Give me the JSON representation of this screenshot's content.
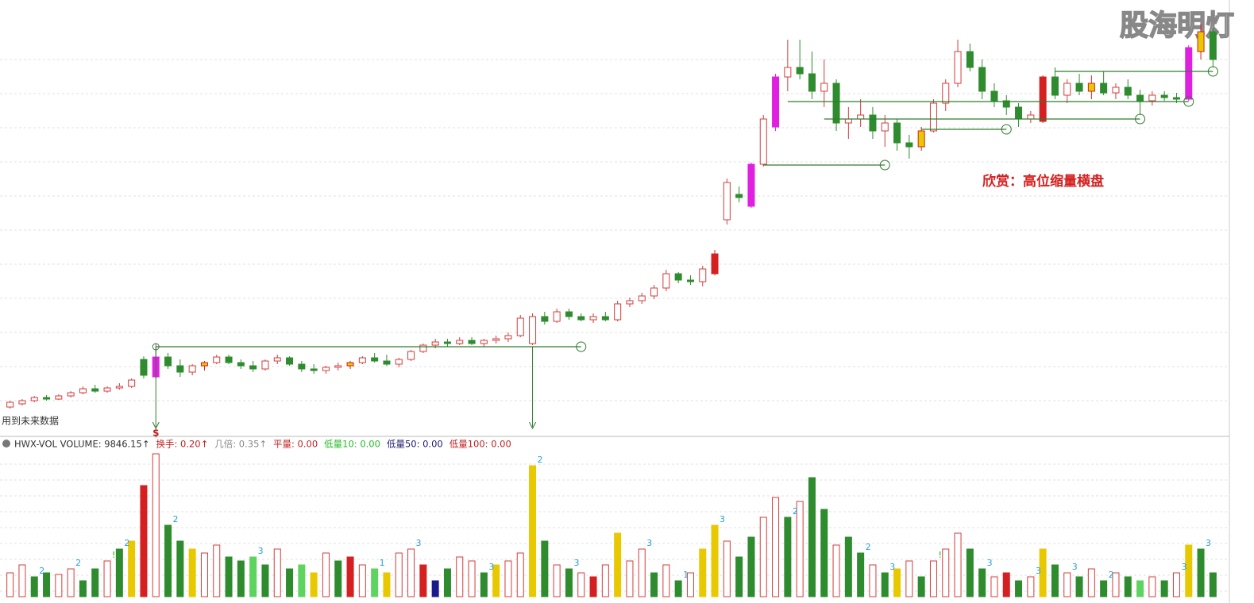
{
  "chart_data": {
    "type": "candlestick",
    "watermark": "股海明灯",
    "annotation": "欣赏：高位缩量横盘",
    "note": "用到未来数据",
    "signal": "$",
    "ylim": [
      0,
      545
    ],
    "colors": {
      "u": "#d43c3c",
      "d": "#2e8b2e",
      "m": "#e020e0",
      "y": "#e8c800",
      "r": "#d42020",
      "b": "#1a1a8c",
      "l": "#5fd35f"
    },
    "ohlc": [
      [
        32,
        40,
        30,
        38
      ],
      [
        36,
        42,
        34,
        40
      ],
      [
        40,
        46,
        38,
        44
      ],
      [
        44,
        47,
        40,
        42
      ],
      [
        42,
        48,
        41,
        46
      ],
      [
        46,
        52,
        44,
        50
      ],
      [
        50,
        58,
        48,
        55
      ],
      [
        55,
        60,
        50,
        52
      ],
      [
        52,
        58,
        50,
        56
      ],
      [
        56,
        62,
        54,
        58
      ],
      [
        58,
        68,
        56,
        66
      ],
      [
        92,
        96,
        68,
        72
      ],
      [
        70,
        112,
        68,
        95
      ],
      [
        95,
        100,
        80,
        84
      ],
      [
        84,
        92,
        70,
        76
      ],
      [
        76,
        86,
        72,
        84
      ],
      [
        84,
        90,
        78,
        88
      ],
      [
        88,
        98,
        86,
        95
      ],
      [
        95,
        98,
        86,
        88
      ],
      [
        88,
        92,
        80,
        84
      ],
      [
        84,
        90,
        76,
        80
      ],
      [
        80,
        92,
        78,
        90
      ],
      [
        90,
        98,
        86,
        94
      ],
      [
        94,
        96,
        84,
        86
      ],
      [
        86,
        90,
        76,
        80
      ],
      [
        80,
        86,
        74,
        78
      ],
      [
        78,
        84,
        74,
        82
      ],
      [
        82,
        88,
        78,
        84
      ],
      [
        84,
        90,
        80,
        88
      ],
      [
        88,
        96,
        86,
        94
      ],
      [
        94,
        100,
        88,
        90
      ],
      [
        90,
        98,
        84,
        86
      ],
      [
        86,
        94,
        82,
        92
      ],
      [
        92,
        104,
        90,
        102
      ],
      [
        102,
        112,
        100,
        110
      ],
      [
        110,
        118,
        106,
        114
      ],
      [
        114,
        118,
        108,
        112
      ],
      [
        112,
        120,
        110,
        116
      ],
      [
        116,
        120,
        110,
        112
      ],
      [
        112,
        118,
        108,
        116
      ],
      [
        116,
        122,
        112,
        118
      ],
      [
        118,
        126,
        114,
        122
      ],
      [
        122,
        148,
        120,
        144
      ],
      [
        112,
        150,
        110,
        146
      ],
      [
        146,
        152,
        136,
        140
      ],
      [
        140,
        156,
        138,
        152
      ],
      [
        152,
        156,
        142,
        146
      ],
      [
        146,
        150,
        140,
        142
      ],
      [
        142,
        150,
        138,
        146
      ],
      [
        146,
        152,
        140,
        142
      ],
      [
        142,
        166,
        140,
        162
      ],
      [
        162,
        170,
        158,
        166
      ],
      [
        166,
        176,
        162,
        172
      ],
      [
        172,
        186,
        168,
        182
      ],
      [
        182,
        205,
        178,
        200
      ],
      [
        200,
        202,
        188,
        192
      ],
      [
        192,
        198,
        186,
        190
      ],
      [
        190,
        210,
        184,
        206
      ],
      [
        200,
        230,
        198,
        225
      ],
      [
        268,
        320,
        262,
        315
      ],
      [
        300,
        310,
        290,
        296
      ],
      [
        285,
        340,
        283,
        338
      ],
      [
        338,
        400,
        335,
        395
      ],
      [
        385,
        452,
        380,
        448
      ],
      [
        448,
        495,
        430,
        460
      ],
      [
        460,
        495,
        445,
        452
      ],
      [
        452,
        480,
        420,
        430
      ],
      [
        430,
        470,
        410,
        440
      ],
      [
        440,
        445,
        380,
        390
      ],
      [
        390,
        410,
        370,
        395
      ],
      [
        395,
        420,
        385,
        400
      ],
      [
        400,
        410,
        370,
        380
      ],
      [
        380,
        400,
        360,
        390
      ],
      [
        390,
        395,
        355,
        365
      ],
      [
        365,
        375,
        345,
        360
      ],
      [
        360,
        385,
        355,
        380
      ],
      [
        380,
        420,
        378,
        415
      ],
      [
        415,
        445,
        405,
        440
      ],
      [
        440,
        495,
        435,
        480
      ],
      [
        480,
        490,
        455,
        460
      ],
      [
        460,
        470,
        420,
        430
      ],
      [
        430,
        440,
        410,
        418
      ],
      [
        418,
        425,
        400,
        410
      ],
      [
        410,
        415,
        385,
        395
      ],
      [
        395,
        405,
        390,
        400
      ],
      [
        392,
        450,
        390,
        448
      ],
      [
        448,
        460,
        420,
        425
      ],
      [
        425,
        445,
        415,
        440
      ],
      [
        440,
        452,
        425,
        430
      ],
      [
        430,
        450,
        420,
        440
      ],
      [
        440,
        455,
        425,
        428
      ],
      [
        428,
        440,
        420,
        435
      ],
      [
        435,
        445,
        420,
        425
      ],
      [
        425,
        432,
        400,
        418
      ],
      [
        418,
        430,
        412,
        425
      ],
      [
        425,
        430,
        418,
        422
      ],
      [
        422,
        428,
        415,
        420
      ],
      [
        420,
        488,
        418,
        485
      ],
      [
        480,
        515,
        470,
        505
      ],
      [
        505,
        510,
        460,
        470
      ]
    ],
    "kinds": [
      "u",
      "u",
      "u",
      "d",
      "u",
      "u",
      "u",
      "d",
      "u",
      "u",
      "u",
      "d",
      "m",
      "d",
      "d",
      "u",
      "y",
      "u",
      "d",
      "d",
      "d",
      "u",
      "u",
      "d",
      "d",
      "d",
      "u",
      "u",
      "y",
      "u",
      "d",
      "d",
      "u",
      "u",
      "u",
      "u",
      "d",
      "u",
      "d",
      "u",
      "u",
      "u",
      "u",
      "u",
      "d",
      "u",
      "d",
      "d",
      "u",
      "d",
      "u",
      "u",
      "u",
      "u",
      "u",
      "d",
      "d",
      "u",
      "r",
      "u",
      "d",
      "m",
      "u",
      "m",
      "u",
      "d",
      "d",
      "u",
      "d",
      "u",
      "u",
      "d",
      "u",
      "d",
      "d",
      "y",
      "u",
      "u",
      "u",
      "d",
      "d",
      "d",
      "d",
      "d",
      "u",
      "r",
      "d",
      "u",
      "d",
      "y",
      "d",
      "u",
      "d",
      "d",
      "u",
      "d",
      "d",
      "m",
      "y",
      "d"
    ],
    "lines": [
      {
        "from": 12,
        "to": 47,
        "value": 108
      },
      {
        "from": 62,
        "to": 72,
        "value": 337
      },
      {
        "from": 67,
        "to": 93,
        "value": 395
      },
      {
        "from": 75,
        "to": 82,
        "value": 382
      },
      {
        "from": 64,
        "to": 97,
        "value": 417
      },
      {
        "from": 86,
        "to": 99,
        "value": 455
      }
    ],
    "arrows": [
      12,
      43
    ],
    "volume": {
      "ylim": [
        0,
        190
      ],
      "values": [
        30,
        40,
        25,
        30,
        28,
        35,
        20,
        35,
        45,
        60,
        70,
        140,
        180,
        90,
        70,
        60,
        55,
        65,
        50,
        45,
        50,
        40,
        60,
        35,
        40,
        30,
        55,
        45,
        50,
        40,
        35,
        30,
        55,
        60,
        40,
        20,
        35,
        50,
        45,
        30,
        40,
        45,
        55,
        165,
        70,
        40,
        35,
        30,
        25,
        40,
        80,
        45,
        60,
        30,
        40,
        20,
        30,
        60,
        90,
        70,
        50,
        75,
        100,
        125,
        100,
        120,
        150,
        110,
        65,
        75,
        55,
        40,
        30,
        35,
        45,
        25,
        45,
        60,
        80,
        60,
        35,
        25,
        30,
        20,
        25,
        60,
        40,
        30,
        25,
        35,
        20,
        30,
        25,
        20,
        25,
        20,
        30,
        65,
        60,
        30
      ],
      "kinds": [
        "u",
        "u",
        "d",
        "d",
        "u",
        "u",
        "d",
        "d",
        "u",
        "d",
        "y",
        "r",
        "u",
        "d",
        "d",
        "y",
        "u",
        "u",
        "d",
        "d",
        "l",
        "d",
        "u",
        "d",
        "l",
        "y",
        "u",
        "d",
        "r",
        "u",
        "l",
        "y",
        "u",
        "u",
        "r",
        "b",
        "d",
        "u",
        "u",
        "d",
        "y",
        "u",
        "u",
        "y",
        "d",
        "u",
        "d",
        "u",
        "r",
        "u",
        "y",
        "u",
        "u",
        "d",
        "u",
        "d",
        "u",
        "y",
        "y",
        "u",
        "d",
        "d",
        "u",
        "u",
        "d",
        "u",
        "d",
        "d",
        "u",
        "d",
        "d",
        "u",
        "d",
        "y",
        "u",
        "d",
        "u",
        "u",
        "u",
        "d",
        "d",
        "u",
        "r",
        "d",
        "u",
        "y",
        "d",
        "u",
        "d",
        "u",
        "d",
        "u",
        "d",
        "l",
        "u",
        "d",
        "u",
        "y",
        "d",
        "d"
      ],
      "markers": [
        {
          "index": 2,
          "label": "2"
        },
        {
          "index": 5,
          "label": "2"
        },
        {
          "index": 8,
          "label": "!"
        },
        {
          "index": 9,
          "label": "2"
        },
        {
          "index": 13,
          "label": "2"
        },
        {
          "index": 20,
          "label": "3"
        },
        {
          "index": 30,
          "label": "1"
        },
        {
          "index": 33,
          "label": "3"
        },
        {
          "index": 39,
          "label": "3"
        },
        {
          "index": 43,
          "label": "2"
        },
        {
          "index": 46,
          "label": "3"
        },
        {
          "index": 52,
          "label": "3"
        },
        {
          "index": 55,
          "label": "1"
        },
        {
          "index": 58,
          "label": "3"
        },
        {
          "index": 64,
          "label": "2"
        },
        {
          "index": 70,
          "label": "2"
        },
        {
          "index": 72,
          "label": "3"
        },
        {
          "index": 76,
          "label": "!"
        },
        {
          "index": 80,
          "label": "3"
        },
        {
          "index": 84,
          "label": "3"
        },
        {
          "index": 87,
          "label": "3"
        },
        {
          "index": 90,
          "label": "2"
        },
        {
          "index": 96,
          "label": "3"
        },
        {
          "index": 98,
          "label": "3"
        }
      ]
    },
    "legend": [
      {
        "text": "HWX-VOL VOLUME: 9846.15↑",
        "color": "#333333"
      },
      {
        "text": "换手: 0.20↑",
        "color": "#c02020"
      },
      {
        "text": "几倍: 0.35↑",
        "color": "#888888"
      },
      {
        "text": "平量: 0.00",
        "color": "#c02020"
      },
      {
        "text": "低量10: 0.00",
        "color": "#22bb22"
      },
      {
        "text": "低量50: 0.00",
        "color": "#1a1a6c"
      },
      {
        "text": "低量100: 0.00",
        "color": "#c02020"
      }
    ]
  }
}
